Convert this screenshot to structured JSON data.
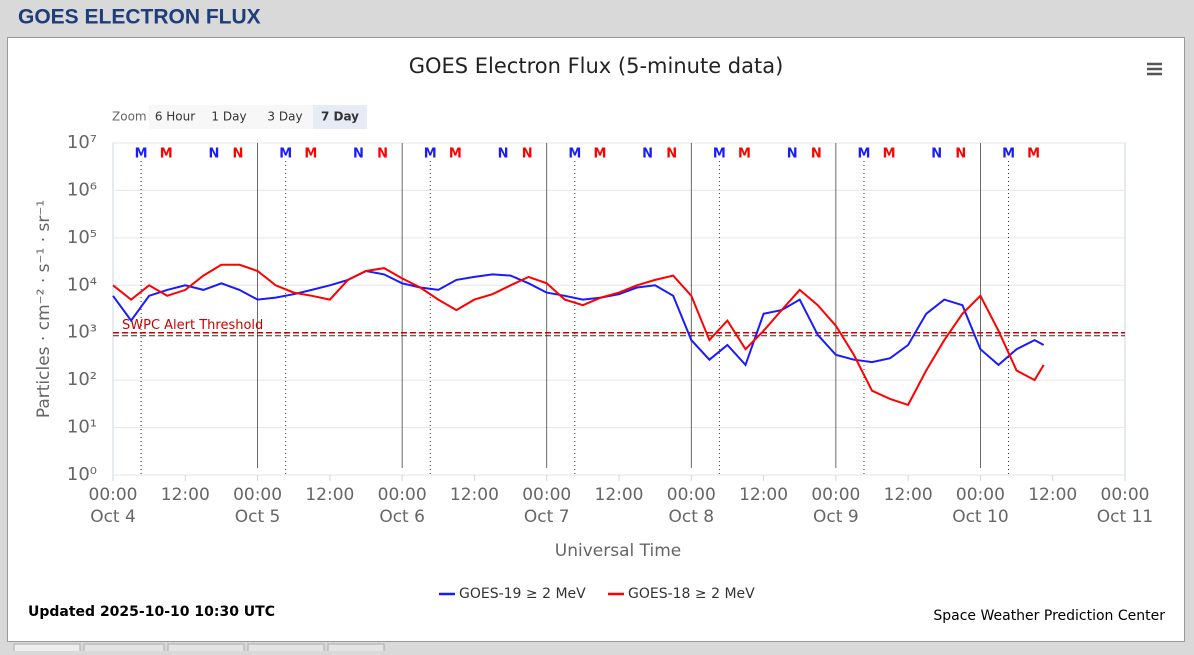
{
  "header": {
    "title": "GOES ELECTRON FLUX"
  },
  "chart_data": {
    "type": "line",
    "title": "GOES Electron Flux (5-minute data)",
    "x_label": "Universal Time",
    "y_label": "Particles · cm⁻² · s⁻¹ · sr⁻¹",
    "yscale": "log",
    "grid": true,
    "zoom": {
      "label": "Zoom",
      "buttons": [
        "6 Hour",
        "1 Day",
        "3 Day",
        "7 Day"
      ],
      "selected": 3
    },
    "xlim": [
      "Oct 4 00:00",
      "Oct 11 00:00"
    ],
    "ylim": [
      1,
      10000000
    ],
    "yticks": [
      {
        "value": 1,
        "label": "10⁰"
      },
      {
        "value": 10,
        "label": "10¹"
      },
      {
        "value": 100,
        "label": "10²"
      },
      {
        "value": 1000,
        "label": "10³"
      },
      {
        "value": 10000,
        "label": "10⁴"
      },
      {
        "value": 100000,
        "label": "10⁵"
      },
      {
        "value": 1000000,
        "label": "10⁶"
      },
      {
        "value": 10000000,
        "label": "10⁷"
      }
    ],
    "xticks": [
      {
        "value": "Oct 4 00:00",
        "label": "00:00",
        "sublabel": "Oct 4"
      },
      {
        "value": "Oct 4 12:00",
        "label": "12:00"
      },
      {
        "value": "Oct 5 00:00",
        "label": "00:00",
        "sublabel": "Oct 5"
      },
      {
        "value": "Oct 5 12:00",
        "label": "12:00"
      },
      {
        "value": "Oct 6 00:00",
        "label": "00:00",
        "sublabel": "Oct 6"
      },
      {
        "value": "Oct 6 12:00",
        "label": "12:00"
      },
      {
        "value": "Oct 7 00:00",
        "label": "00:00",
        "sublabel": "Oct 7"
      },
      {
        "value": "Oct 7 12:00",
        "label": "12:00"
      },
      {
        "value": "Oct 8 00:00",
        "label": "00:00",
        "sublabel": "Oct 8"
      },
      {
        "value": "Oct 8 12:00",
        "label": "12:00"
      },
      {
        "value": "Oct 9 00:00",
        "label": "00:00",
        "sublabel": "Oct 9"
      },
      {
        "value": "Oct 9 12:00",
        "label": "12:00"
      },
      {
        "value": "Oct 10 00:00",
        "label": "00:00",
        "sublabel": "Oct 10"
      },
      {
        "value": "Oct 10 12:00",
        "label": "12:00"
      },
      {
        "value": "Oct 11 00:00",
        "label": "00:00",
        "sublabel": "Oct 11"
      }
    ],
    "threshold": {
      "value": 1000,
      "label": "SWPC Alert Threshold",
      "color": "#cc0000"
    },
    "markers": [
      {
        "label": "M",
        "color": "#1a1aff",
        "dotted": true,
        "x": [
          "Oct 4 04:40",
          "Oct 5 04:40",
          "Oct 6 04:40",
          "Oct 7 04:40",
          "Oct 8 04:40",
          "Oct 9 04:40",
          "Oct 10 04:40"
        ]
      },
      {
        "label": "M",
        "color": "#ff0000",
        "dotted": false,
        "x": [
          "Oct 4 08:50",
          "Oct 5 08:50",
          "Oct 6 08:50",
          "Oct 7 08:50",
          "Oct 8 08:50",
          "Oct 9 08:50",
          "Oct 10 08:50"
        ]
      },
      {
        "label": "N",
        "color": "#1a1aff",
        "dotted": false,
        "x": [
          "Oct 4 16:45",
          "Oct 5 16:45",
          "Oct 6 16:45",
          "Oct 7 16:45",
          "Oct 8 16:45",
          "Oct 9 16:45"
        ]
      },
      {
        "label": "N",
        "color": "#ff0000",
        "dotted": false,
        "x": [
          "Oct 4 20:45",
          "Oct 5 20:45",
          "Oct 6 20:45",
          "Oct 7 20:45",
          "Oct 8 20:45",
          "Oct 9 20:45"
        ]
      }
    ],
    "x": [
      "Oct 4 00:00",
      "Oct 4 03:00",
      "Oct 4 06:00",
      "Oct 4 09:00",
      "Oct 4 12:00",
      "Oct 4 15:00",
      "Oct 4 18:00",
      "Oct 4 21:00",
      "Oct 5 00:00",
      "Oct 5 03:00",
      "Oct 5 06:00",
      "Oct 5 09:00",
      "Oct 5 12:00",
      "Oct 5 15:00",
      "Oct 5 18:00",
      "Oct 5 21:00",
      "Oct 6 00:00",
      "Oct 6 03:00",
      "Oct 6 06:00",
      "Oct 6 09:00",
      "Oct 6 12:00",
      "Oct 6 15:00",
      "Oct 6 18:00",
      "Oct 6 21:00",
      "Oct 7 00:00",
      "Oct 7 03:00",
      "Oct 7 06:00",
      "Oct 7 09:00",
      "Oct 7 12:00",
      "Oct 7 15:00",
      "Oct 7 18:00",
      "Oct 7 21:00",
      "Oct 8 00:00",
      "Oct 8 03:00",
      "Oct 8 06:00",
      "Oct 8 09:00",
      "Oct 8 12:00",
      "Oct 8 15:00",
      "Oct 8 18:00",
      "Oct 8 21:00",
      "Oct 9 00:00",
      "Oct 9 03:00",
      "Oct 9 06:00",
      "Oct 9 09:00",
      "Oct 9 12:00",
      "Oct 9 15:00",
      "Oct 9 18:00",
      "Oct 9 21:00",
      "Oct 10 00:00",
      "Oct 10 03:00",
      "Oct 10 06:00",
      "Oct 10 09:00",
      "Oct 10 10:30"
    ],
    "series": [
      {
        "name": "GOES-19 ≥ 2 MeV",
        "color": "#1a1aff",
        "values": [
          6000,
          1800,
          6000,
          8000,
          10000,
          8000,
          11000,
          8000,
          5000,
          5500,
          6500,
          8000,
          10000,
          13000,
          20000,
          17000,
          11000,
          9000,
          8000,
          13000,
          15000,
          17000,
          16000,
          11000,
          7000,
          6000,
          5000,
          5500,
          6500,
          9000,
          10000,
          6000,
          700,
          270,
          550,
          210,
          2500,
          3000,
          5000,
          900,
          340,
          270,
          240,
          290,
          550,
          2500,
          5000,
          3800,
          450,
          210,
          450,
          700,
          550
        ]
      },
      {
        "name": "GOES-18 ≥ 2 MeV",
        "color": "#ff0000",
        "values": [
          10000,
          5000,
          10000,
          6000,
          8000,
          16000,
          27000,
          27000,
          20000,
          10000,
          7000,
          6000,
          5000,
          13000,
          20000,
          23000,
          14000,
          9000,
          5000,
          3000,
          5000,
          6500,
          10000,
          15000,
          11000,
          5000,
          3800,
          5500,
          7000,
          10000,
          13000,
          16000,
          6000,
          700,
          1800,
          450,
          1100,
          3000,
          8000,
          3800,
          1400,
          340,
          60,
          40,
          30,
          160,
          700,
          2500,
          6000,
          1100,
          160,
          100,
          210
        ]
      }
    ],
    "updated": "Updated 2025-10-10 10:30 UTC",
    "credit": "Space Weather Prediction Center"
  }
}
